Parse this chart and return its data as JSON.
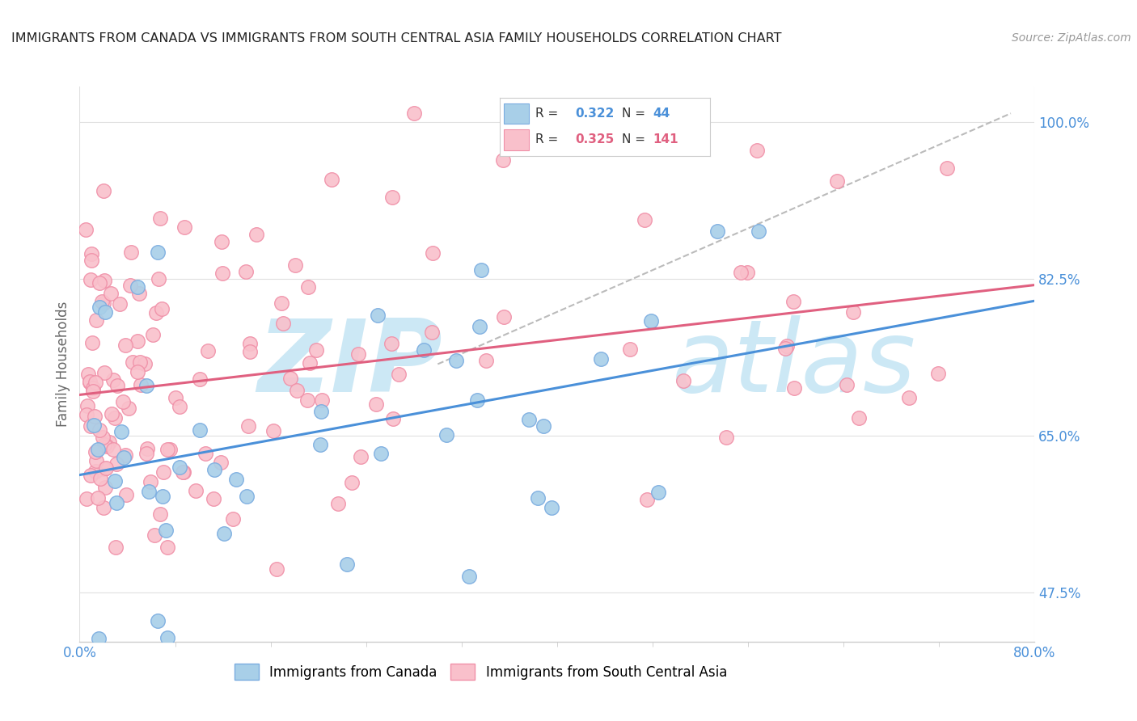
{
  "title": "IMMIGRANTS FROM CANADA VS IMMIGRANTS FROM SOUTH CENTRAL ASIA FAMILY HOUSEHOLDS CORRELATION CHART",
  "source": "Source: ZipAtlas.com",
  "ylabel": "Family Households",
  "yticks": [
    "47.5%",
    "65.0%",
    "82.5%",
    "100.0%"
  ],
  "ytick_vals": [
    0.475,
    0.65,
    0.825,
    1.0
  ],
  "xlim": [
    0.0,
    0.8
  ],
  "ylim": [
    0.42,
    1.04
  ],
  "r_canada": 0.322,
  "n_canada": 44,
  "r_asia": 0.325,
  "n_asia": 141,
  "canada_color": "#a8cfe8",
  "canada_edge": "#7aace0",
  "asia_color": "#f9c0cb",
  "asia_edge": "#f090a8",
  "canada_line_color": "#4a90d9",
  "asia_line_color": "#e06080",
  "gray_dash_color": "#bbbbbb",
  "watermark_color": "#cce8f5",
  "legend_r_canada_color": "#4a90d9",
  "legend_r_asia_color": "#e06080",
  "grid_color": "#e0e0e0",
  "title_color": "#222222",
  "source_color": "#999999",
  "ylabel_color": "#666666",
  "tick_color": "#4a90d9"
}
